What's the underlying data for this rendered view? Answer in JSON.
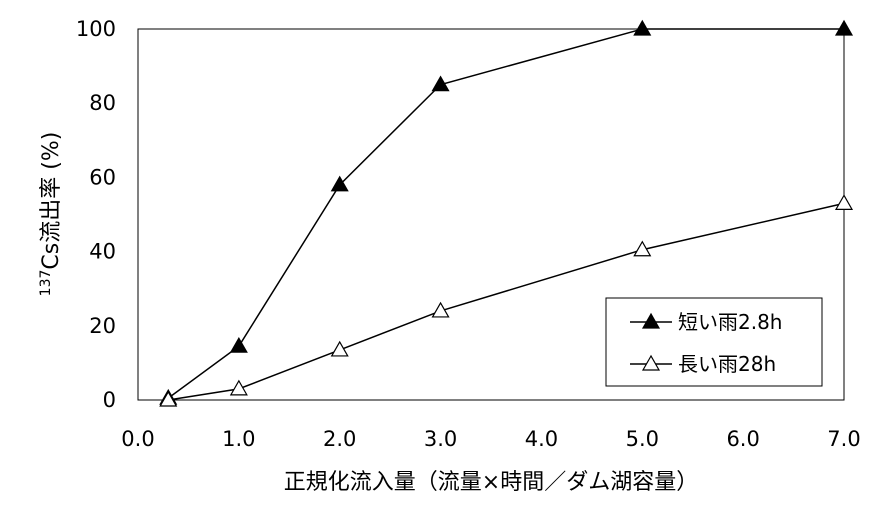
{
  "chart_data": {
    "type": "line",
    "xlabel": "正規化流入量（流量×時間／ダム湖容量）",
    "ylabel_sup": "137",
    "ylabel": "Cs流出率 (%)",
    "xlim": [
      0,
      7
    ],
    "ylim": [
      0,
      100
    ],
    "x_ticks": [
      0,
      1,
      2,
      3,
      4,
      5,
      6,
      7
    ],
    "x_tick_labels": [
      "0.0",
      "1.0",
      "2.0",
      "3.0",
      "4.0",
      "5.0",
      "6.0",
      "7.0"
    ],
    "y_ticks": [
      0,
      20,
      40,
      60,
      80,
      100
    ],
    "y_tick_labels": [
      "0",
      "20",
      "40",
      "60",
      "80",
      "100"
    ],
    "grid": false,
    "legend_position": "bottom-right",
    "series": [
      {
        "name": "短い雨2.8h",
        "marker": "filled-triangle",
        "color": "#000000",
        "x": [
          0.3,
          1.0,
          2.0,
          3.0,
          5.0,
          7.0
        ],
        "y": [
          0.5,
          14.5,
          58,
          85,
          100,
          100
        ]
      },
      {
        "name": "長い雨28h",
        "marker": "open-triangle",
        "color": "#000000",
        "x": [
          0.3,
          1.0,
          2.0,
          3.0,
          5.0,
          7.0
        ],
        "y": [
          0,
          3,
          13.5,
          24,
          40.5,
          53
        ]
      }
    ]
  }
}
